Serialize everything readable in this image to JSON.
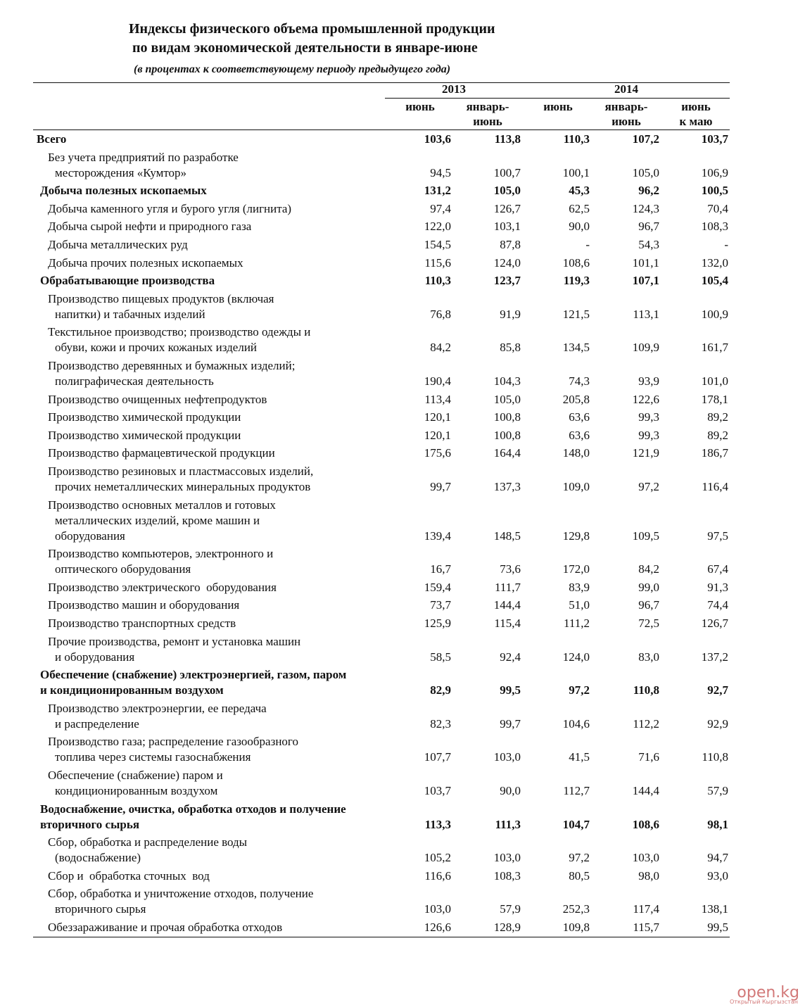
{
  "header": {
    "title": [
      "Индексы физического объема промышленной продукции",
      "по видам экономической деятельности в январе-июне"
    ],
    "subtitle": "(в процентах к соответствующему периоду предыдущего года)"
  },
  "table": {
    "years": [
      "2013",
      "2014"
    ],
    "columns": [
      [
        "июнь"
      ],
      [
        "январь-",
        "июнь"
      ],
      [
        "июнь"
      ],
      [
        "январь-",
        "июнь"
      ],
      [
        "июнь",
        "к маю"
      ]
    ],
    "rows": [
      {
        "label": [
          "Всего"
        ],
        "bold": true,
        "values": [
          "103,6",
          "113,8",
          "110,3",
          "107,2",
          "103,7"
        ]
      },
      {
        "label": [
          "Без учета предприятий по разработке",
          "месторождения «Кумтор»"
        ],
        "values": [
          "94,5",
          "100,7",
          "100,1",
          "105,0",
          "106,9"
        ]
      },
      {
        "label": [
          "Добыча полезных ископаемых"
        ],
        "bold": true,
        "values": [
          "131,2",
          "105,0",
          "45,3",
          "96,2",
          "100,5"
        ]
      },
      {
        "label": [
          "Добыча каменного угля и бурого угля (лигнита)"
        ],
        "values": [
          "97,4",
          "126,7",
          "62,5",
          "124,3",
          "70,4"
        ]
      },
      {
        "label": [
          "Добыча сырой нефти и природного газа"
        ],
        "values": [
          "122,0",
          "103,1",
          "90,0",
          "96,7",
          "108,3"
        ]
      },
      {
        "label": [
          "Добыча металлических руд"
        ],
        "values": [
          "154,5",
          "87,8",
          "-",
          "54,3",
          "-"
        ]
      },
      {
        "label": [
          "Добыча прочих полезных ископаемых"
        ],
        "values": [
          "115,6",
          "124,0",
          "108,6",
          "101,1",
          "132,0"
        ]
      },
      {
        "label": [
          "Обрабатывающие производства"
        ],
        "bold": true,
        "values": [
          "110,3",
          "123,7",
          "119,3",
          "107,1",
          "105,4"
        ]
      },
      {
        "label": [
          "Производство пищевых продуктов (включая",
          "напитки) и табачных изделий"
        ],
        "values": [
          "76,8",
          "91,9",
          "121,5",
          "113,1",
          "100,9"
        ]
      },
      {
        "label": [
          "Текстильное производство; производство одежды и",
          "обуви, кожи и прочих кожаных изделий"
        ],
        "values": [
          "84,2",
          "85,8",
          "134,5",
          "109,9",
          "161,7"
        ]
      },
      {
        "label": [
          "Производство деревянных и бумажных изделий;",
          "полиграфическая деятельность"
        ],
        "values": [
          "190,4",
          "104,3",
          "74,3",
          "93,9",
          "101,0"
        ]
      },
      {
        "label": [
          "Производство очищенных нефтепродуктов"
        ],
        "values": [
          "113,4",
          "105,0",
          "205,8",
          "122,6",
          "178,1"
        ]
      },
      {
        "label": [
          "Производство химической продукции"
        ],
        "values": [
          "120,1",
          "100,8",
          "63,6",
          "99,3",
          "89,2"
        ]
      },
      {
        "label": [
          "Производство химической продукции"
        ],
        "values": [
          "120,1",
          "100,8",
          "63,6",
          "99,3",
          "89,2"
        ]
      },
      {
        "label": [
          "Производство фармацевтической продукции"
        ],
        "values": [
          "175,6",
          "164,4",
          "148,0",
          "121,9",
          "186,7"
        ]
      },
      {
        "label": [
          "Производство резиновых и пластмассовых изделий,",
          "прочих неметаллических минеральных продуктов"
        ],
        "values": [
          "99,7",
          "137,3",
          "109,0",
          "97,2",
          "116,4"
        ]
      },
      {
        "label": [
          "Производство основных металлов и готовых",
          "металлических изделий, кроме машин и",
          "оборудования"
        ],
        "values": [
          "139,4",
          "148,5",
          "129,8",
          "109,5",
          "97,5"
        ]
      },
      {
        "label": [
          "Производство компьютеров, электронного и",
          "оптического оборудования"
        ],
        "values": [
          "16,7",
          "73,6",
          "172,0",
          "84,2",
          "67,4"
        ]
      },
      {
        "label": [
          "Производство электрического  оборудования"
        ],
        "values": [
          "159,4",
          "111,7",
          "83,9",
          "99,0",
          "91,3"
        ]
      },
      {
        "label": [
          "Производство машин и оборудования"
        ],
        "values": [
          "73,7",
          "144,4",
          "51,0",
          "96,7",
          "74,4"
        ]
      },
      {
        "label": [
          "Производство транспортных средств"
        ],
        "values": [
          "125,9",
          "115,4",
          "111,2",
          "72,5",
          "126,7"
        ]
      },
      {
        "label": [
          "Прочие производства, ремонт и установка машин",
          "и оборудования"
        ],
        "values": [
          "58,5",
          "92,4",
          "124,0",
          "83,0",
          "137,2"
        ]
      },
      {
        "label": [
          "Обеспечение (снабжение) электроэнергией, газом, паром",
          "и кондиционированным воздухом"
        ],
        "bold": true,
        "values": [
          "82,9",
          "99,5",
          "97,2",
          "110,8",
          "92,7"
        ]
      },
      {
        "label": [
          "Производство электроэнергии, ее передача",
          "и распределение"
        ],
        "values": [
          "82,3",
          "99,7",
          "104,6",
          "112,2",
          "92,9"
        ]
      },
      {
        "label": [
          "Производство газа; распределение газообразного",
          "топлива через системы газоснабжения"
        ],
        "values": [
          "107,7",
          "103,0",
          "41,5",
          "71,6",
          "110,8"
        ]
      },
      {
        "label": [
          "Обеспечение (снабжение) паром и",
          "кондиционированным воздухом"
        ],
        "values": [
          "103,7",
          "90,0",
          "112,7",
          "144,4",
          "57,9"
        ]
      },
      {
        "label": [
          "Водоснабжение, очистка, обработка отходов и получение",
          "вторичного сырья"
        ],
        "bold": true,
        "values": [
          "113,3",
          "111,3",
          "104,7",
          "108,6",
          "98,1"
        ]
      },
      {
        "label": [
          "Сбор, обработка и распределение воды",
          "(водоснабжение)"
        ],
        "values": [
          "105,2",
          "103,0",
          "97,2",
          "103,0",
          "94,7"
        ]
      },
      {
        "label": [
          "Сбор и  обработка сточных  вод"
        ],
        "values": [
          "116,6",
          "108,3",
          "80,5",
          "98,0",
          "93,0"
        ]
      },
      {
        "label": [
          "Сбор, обработка и уничтожение отходов, получение",
          "вторичного сырья"
        ],
        "values": [
          "103,0",
          "57,9",
          "252,3",
          "117,4",
          "138,1"
        ]
      },
      {
        "label": [
          "Обеззараживание и прочая обработка отходов"
        ],
        "values": [
          "126,6",
          "128,9",
          "109,8",
          "115,7",
          "99,5"
        ]
      }
    ]
  },
  "watermark": {
    "logo": "open.kg",
    "caption": "Открытый Кыргызстан"
  }
}
